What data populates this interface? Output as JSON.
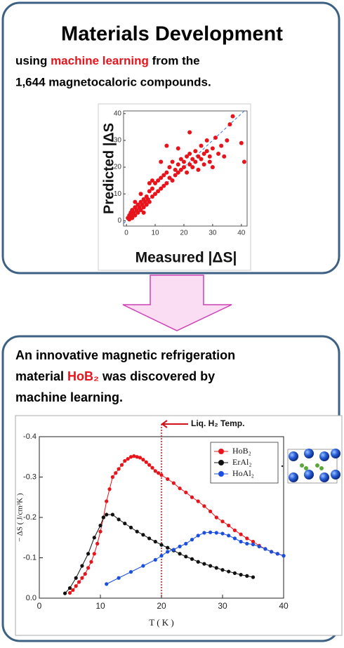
{
  "panel1": {
    "title": "Materials Development",
    "line1": [
      "using ",
      "machine learning",
      " from the"
    ],
    "line2": "1,644 magnetocaloric compounds."
  },
  "panel2": {
    "line1": "An innovative magnetic refrigeration",
    "line2": [
      "material ",
      "HoB₂",
      " was discovered by"
    ],
    "line3": "machine learning."
  },
  "chart_data": [
    {
      "type": "scatter",
      "x_label": "Measured |ΔS|",
      "y_label": "Predicted |ΔS",
      "color": "#e8141c",
      "xlim": [
        -1,
        42
      ],
      "ylim": [
        -2,
        41
      ],
      "xticks": [
        0,
        10,
        20,
        30,
        40
      ],
      "yticks": [
        0,
        10,
        20,
        30,
        40
      ],
      "x": [
        0.5,
        1,
        1,
        1.5,
        1.5,
        2,
        2,
        2.5,
        3,
        3,
        3.5,
        4,
        4,
        4.5,
        5,
        5,
        5.5,
        6,
        6,
        6.5,
        7,
        7,
        7.5,
        8,
        8,
        9,
        9,
        10,
        10,
        11,
        11,
        12,
        12,
        13,
        13,
        14,
        14,
        15,
        15,
        16,
        16,
        17,
        17,
        18,
        18,
        19,
        19,
        20,
        20,
        21,
        21,
        22,
        22,
        23,
        23,
        24,
        24,
        25,
        25,
        26,
        26,
        27,
        27,
        28,
        28,
        29,
        29,
        30,
        30,
        31,
        32,
        33,
        34,
        35,
        36,
        37,
        40,
        41,
        14,
        3,
        5,
        8,
        12,
        18,
        22,
        9,
        6,
        2
      ],
      "values": [
        1,
        0.5,
        2,
        1.5,
        3,
        2,
        4,
        3,
        2,
        5,
        4,
        3,
        6,
        5,
        4,
        7,
        6,
        5,
        8,
        7,
        6,
        9,
        8,
        7,
        11,
        9,
        12,
        10,
        14,
        11,
        15,
        12,
        16,
        13,
        17,
        14,
        18,
        16,
        20,
        15,
        22,
        17,
        19,
        18,
        21,
        19,
        23,
        20,
        22,
        18,
        24,
        21,
        25,
        20,
        23,
        22,
        26,
        19,
        24,
        23,
        28,
        25,
        21,
        26,
        30,
        22,
        24,
        27,
        20,
        31,
        25,
        28,
        24,
        30,
        36,
        39,
        29,
        22,
        28,
        7,
        10,
        14,
        22,
        27,
        33,
        15,
        3,
        1
      ]
    },
    {
      "type": "line",
      "x_label": "T ( K )",
      "y_label": "− ΔS ( J/cm³K )",
      "xlim": [
        0,
        40
      ],
      "ylim": [
        0,
        -0.4
      ],
      "xticks": [
        0,
        10,
        20,
        30,
        40
      ],
      "yticks": [
        {
          "value": 0,
          "label": "0.0"
        },
        -0.1,
        -0.2,
        -0.3,
        -0.4
      ],
      "annotation": {
        "text": "Liq. H₂ Temp.",
        "x": 20,
        "color": "#d0101a"
      },
      "series": [
        {
          "name": "HoB₂",
          "color": "#e8141c",
          "x": [
            5,
            5.5,
            6,
            6.5,
            7,
            7.5,
            8,
            8.5,
            9,
            9.5,
            10,
            10.5,
            11,
            11.5,
            12,
            12.5,
            13,
            13.5,
            14,
            14.5,
            15,
            15.5,
            16,
            16.5,
            17,
            17.5,
            18,
            18.5,
            19,
            19.5,
            20,
            21,
            22,
            23,
            24,
            25,
            26,
            27,
            28,
            29,
            30,
            31,
            32,
            33,
            34,
            35,
            36,
            37,
            38,
            39,
            40
          ],
          "values": [
            -0.013,
            -0.02,
            -0.03,
            -0.04,
            -0.05,
            -0.06,
            -0.075,
            -0.09,
            -0.11,
            -0.135,
            -0.165,
            -0.2,
            -0.24,
            -0.27,
            -0.3,
            -0.31,
            -0.32,
            -0.33,
            -0.34,
            -0.345,
            -0.35,
            -0.352,
            -0.35,
            -0.348,
            -0.343,
            -0.337,
            -0.33,
            -0.323,
            -0.315,
            -0.31,
            -0.305,
            -0.295,
            -0.285,
            -0.272,
            -0.262,
            -0.25,
            -0.24,
            -0.228,
            -0.215,
            -0.2,
            -0.19,
            -0.18,
            -0.168,
            -0.158,
            -0.148,
            -0.14,
            -0.13,
            -0.122,
            -0.115,
            -0.11,
            -0.105
          ]
        },
        {
          "name": "ErAl₂",
          "color": "#111111",
          "x": [
            4.2,
            5,
            6,
            7,
            8,
            9,
            10,
            10.5,
            11,
            12,
            13,
            14,
            15,
            16,
            17,
            18,
            19,
            20,
            21,
            22,
            23,
            24,
            25,
            26,
            27,
            28,
            29,
            30,
            31,
            32,
            33,
            34,
            35
          ],
          "values": [
            -0.012,
            -0.025,
            -0.05,
            -0.08,
            -0.11,
            -0.15,
            -0.18,
            -0.2,
            -0.207,
            -0.207,
            -0.195,
            -0.185,
            -0.175,
            -0.165,
            -0.157,
            -0.148,
            -0.14,
            -0.132,
            -0.125,
            -0.118,
            -0.11,
            -0.103,
            -0.097,
            -0.09,
            -0.085,
            -0.08,
            -0.075,
            -0.07,
            -0.066,
            -0.062,
            -0.058,
            -0.055,
            -0.052
          ]
        },
        {
          "name": "HoAl₂",
          "color": "#1a4fe0",
          "x": [
            11,
            13,
            15,
            17,
            19,
            20,
            21,
            22,
            23,
            24,
            25,
            26,
            27,
            28,
            29,
            30,
            31,
            32,
            33,
            34,
            35,
            36,
            37,
            38,
            39,
            40
          ],
          "values": [
            -0.035,
            -0.05,
            -0.065,
            -0.08,
            -0.095,
            -0.105,
            -0.115,
            -0.12,
            -0.128,
            -0.135,
            -0.145,
            -0.155,
            -0.162,
            -0.163,
            -0.162,
            -0.16,
            -0.155,
            -0.148,
            -0.14,
            -0.135,
            -0.133,
            -0.128,
            -0.122,
            -0.115,
            -0.11,
            -0.105
          ]
        }
      ]
    }
  ]
}
